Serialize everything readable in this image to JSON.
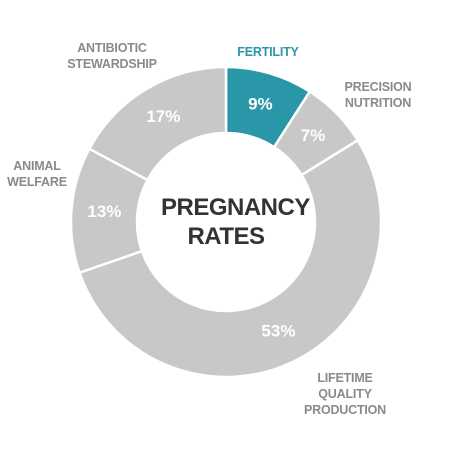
{
  "chart_data": {
    "type": "donut",
    "center_label": "PREGNANCY RATES",
    "categories": [
      "FERTILITY",
      "PRECISION NUTRITION",
      "LIFETIME QUALITY PRODUCTION",
      "ANIMAL WELFARE",
      "ANTIBIOTIC STEWARDSHIP"
    ],
    "values": [
      9,
      7,
      53,
      13,
      17
    ],
    "value_labels": [
      "9%",
      "7%",
      "53%",
      "13%",
      "17%"
    ],
    "colors": [
      "#2a97a8",
      "#c8c8c8",
      "#c8c8c8",
      "#c8c8c8",
      "#c8c8c8"
    ],
    "label_colors": [
      "#2a97a8",
      "#8a8a8a",
      "#8a8a8a",
      "#8a8a8a",
      "#8a8a8a"
    ]
  }
}
